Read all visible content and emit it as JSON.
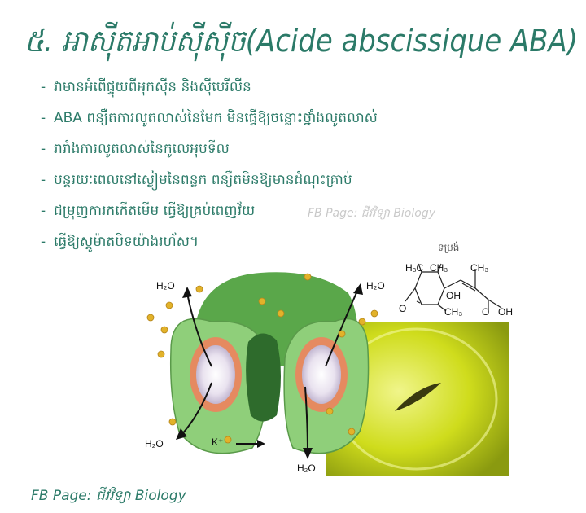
{
  "title": "៥. អាស៊ីតអាប់ស៊ីស៊ីច(Acide abscissique ABA)",
  "bullets": [
    "វាមានអំពើផ្ទុយពីអុកស៊ីន និងស៊ីបេរីលីន",
    "ABA ពន្យឺតការលូតលាស់នៃមែក មិនធ្វើឱ្យចន្លោះថ្នាំងលូតលាស់",
    "រារាំងការលូតលាស់នៃកូលេអុបទីល",
    "បន្តរយៈពេលនៅស្ងៀមនៃពន្លក ពន្យឺតមិនឱ្យមានដំណុះគ្រាប់",
    "ជម្រុញការកកើតមើម ធ្វើឱ្យគ្រប់ពេញវ័យ",
    "ធ្វើឱ្យស្តូម៉ាតបិទយ៉ាងរហ័ស។"
  ],
  "bullet_dash": "-",
  "watermark": "FB Page: ជីវវិទ្យា Biology",
  "footer": "FB Page: ជីវវិទ្យា Biology",
  "figure": {
    "h2o_left_top": "H₂O",
    "h2o_right_top": "H₂O",
    "h2o_left_bottom": "H₂O",
    "h2o_right_bottom": "H₂O",
    "k_ion": "K⁺"
  },
  "molecule": {
    "title": "ទម្រង់",
    "h3c": "H₃C",
    "ch3_a": "CH₃",
    "ch3_b": "CH₃",
    "ch3_c": "CH₃",
    "oh_ring": "OH",
    "o_ketone": "O",
    "oh_acid": "OH",
    "o_acid": "O"
  },
  "colors": {
    "title": "#2b7a68",
    "text": "#2b7a68",
    "watermark": "#c9c9c9",
    "stoma_photo": "#d6e21a"
  }
}
